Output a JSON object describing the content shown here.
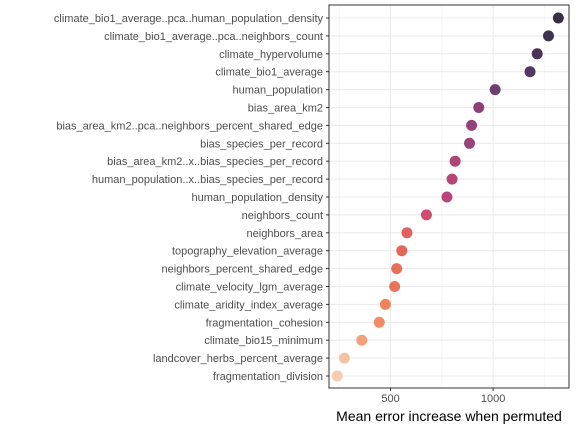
{
  "chart_data": {
    "type": "scatter",
    "orientation": "horizontal-dotplot",
    "xlabel": "Mean error increase when permuted",
    "ylabel": "",
    "xlim": [
      200,
      1370
    ],
    "xticks": [
      {
        "value": 500,
        "label": "500"
      },
      {
        "value": 1000,
        "label": "1000"
      }
    ],
    "grid": true,
    "legend": "none",
    "categories": [
      "climate_bio1_average..pca..human_population_density",
      "climate_bio1_average..pca..neighbors_count",
      "climate_hypervolume",
      "climate_bio1_average",
      "human_population",
      "bias_area_km2",
      "bias_area_km2..pca..neighbors_percent_shared_edge",
      "bias_species_per_record",
      "bias_area_km2..x..bias_species_per_record",
      "human_population..x..bias_species_per_record",
      "human_population_density",
      "neighbors_count",
      "neighbors_area",
      "topography_elevation_average",
      "neighbors_percent_shared_edge",
      "climate_velocity_lgm_average",
      "climate_aridity_index_average",
      "fragmentation_cohesion",
      "climate_bio15_minimum",
      "landcover_herbs_percent_average",
      "fragmentation_division"
    ],
    "values": [
      1318,
      1270,
      1215,
      1180,
      1010,
      930,
      895,
      885,
      815,
      800,
      775,
      675,
      580,
      555,
      530,
      520,
      475,
      445,
      360,
      275,
      240
    ],
    "colors": [
      "#3a2f47",
      "#3f3250",
      "#4a3458",
      "#523862",
      "#6e3e71",
      "#8b4177",
      "#94427a",
      "#99437b",
      "#ad4579",
      "#b44678",
      "#bb4676",
      "#d04c70",
      "#e0625f",
      "#e3675c",
      "#e8705b",
      "#ea735a",
      "#ee8360",
      "#f08d67",
      "#f3a17c",
      "#f5c2a4",
      "#f6cbae"
    ]
  }
}
